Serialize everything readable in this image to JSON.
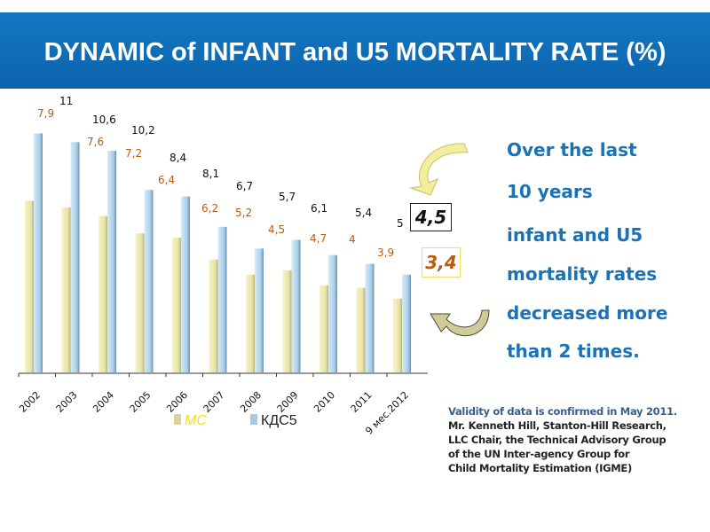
{
  "title": "DYNAMIC of INFANT and U5 MORTALITY RATE (%)",
  "side_text": [
    "Over the last",
    "10 years",
    "infant and U5",
    "mortality rates",
    "decreased  more",
    "than 2 times."
  ],
  "note": {
    "line1": "Validity of data is confirmed in May 2011.",
    "lines": [
      "Mr. Kenneth  Hill, Stanton-Hill Research,",
      "LLC Chair, the Technical Advisory Group",
      "of the UN Inter-agency  Group for",
      "Child Mortality Estimation (IGME)"
    ]
  },
  "highlight": {
    "u5_latest": "4,5",
    "infant_latest": "3,4"
  },
  "colors": {
    "title_bg": "#0b64ad",
    "mc": "#eeeab0",
    "kds5": "#b9d8ee",
    "mc_label": "#b85c10",
    "side_text": "#1a72b8"
  },
  "chart_data": {
    "type": "bar",
    "categories": [
      "2002",
      "2003",
      "2004",
      "2005",
      "2006",
      "2007",
      "2008",
      "2009",
      "2010",
      "2011",
      "9 мес.2012"
    ],
    "series": [
      {
        "name": "МС",
        "values": [
          7.9,
          7.6,
          7.2,
          6.4,
          6.2,
          5.2,
          4.5,
          4.7,
          4,
          3.9,
          3.4
        ],
        "labels": [
          "7,9",
          "7,6",
          "7,2",
          "6,4",
          "6,2",
          "5,2",
          "4,5",
          "4,7",
          "4",
          "3,9",
          ""
        ]
      },
      {
        "name": "КДС5",
        "values": [
          11,
          10.6,
          10.2,
          8.4,
          8.1,
          6.7,
          5.7,
          6.1,
          5.4,
          5,
          4.5
        ],
        "labels": [
          "11",
          "10,6",
          "10,2",
          "8,4",
          "8,1",
          "6,7",
          "5,7",
          "6,1",
          "5,4",
          "5",
          ""
        ]
      }
    ],
    "ylim": [
      0,
      11
    ],
    "grid": false,
    "legend": "bottom"
  }
}
